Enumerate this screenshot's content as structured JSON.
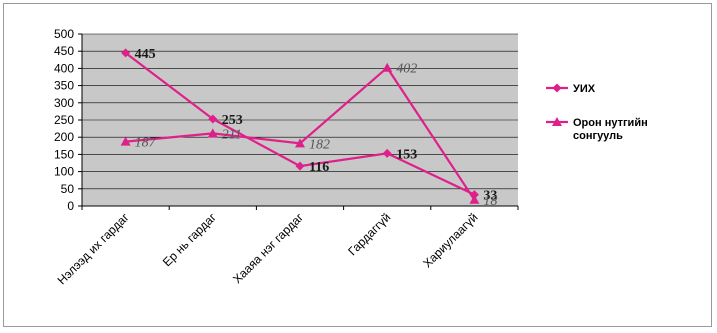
{
  "chart_data": {
    "type": "line",
    "categories": [
      "Нэлээд их гардаг",
      "Ер нь гардаг",
      "Хааяа нэг гардаг",
      "Гардаггүй",
      "Хариулаагүй"
    ],
    "series": [
      {
        "name": "УИХ",
        "values": [
          445,
          253,
          116,
          153,
          33
        ],
        "color": "#e0208a",
        "marker": "diamond",
        "label_style": "bold"
      },
      {
        "name": "Орон нутгийн сонгууль",
        "values": [
          187,
          211,
          182,
          402,
          18
        ],
        "color": "#e0208a",
        "marker": "triangle",
        "label_style": "italic"
      }
    ],
    "yticks": [
      0,
      50,
      100,
      150,
      200,
      250,
      300,
      350,
      400,
      450,
      500
    ],
    "ylim": [
      0,
      500
    ],
    "grid": true,
    "legend_position": "right"
  }
}
